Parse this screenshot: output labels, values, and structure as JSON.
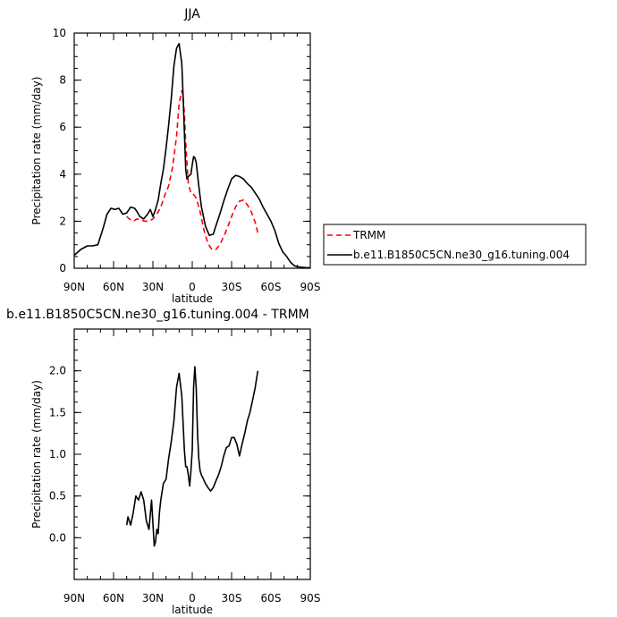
{
  "chart_data": [
    {
      "type": "line",
      "title": "JJA",
      "xlabel": "latitude",
      "ylabel": "Precipitation rate (mm/day)",
      "xlim": [
        90,
        -90
      ],
      "ylim": [
        0,
        10
      ],
      "xticks": [
        90,
        60,
        30,
        0,
        -30,
        -60,
        -90
      ],
      "xtick_labels": [
        "90N",
        "60N",
        "30N",
        "0",
        "30S",
        "60S",
        "90S"
      ],
      "yticks": [
        0,
        2,
        4,
        6,
        8,
        10
      ],
      "ytick_labels": [
        "0",
        "2",
        "4",
        "6",
        "8",
        "10"
      ],
      "legend_position": "right",
      "series": [
        {
          "name": "TRMM",
          "color": "#ff0000",
          "style": "dashed",
          "x": [
            50,
            48,
            45,
            42,
            39,
            36,
            33,
            30,
            27,
            24,
            21,
            18,
            15,
            12,
            10,
            8,
            7,
            6,
            5,
            3,
            1,
            0,
            -3,
            -6,
            -9,
            -12,
            -15,
            -18,
            -21,
            -24,
            -27,
            -30,
            -33,
            -36,
            -39,
            -42,
            -45,
            -48,
            -50
          ],
          "y": [
            2.2,
            2.1,
            2.0,
            2.1,
            2.05,
            2.0,
            2.0,
            2.1,
            2.3,
            2.6,
            3.1,
            3.5,
            4.3,
            5.6,
            7.0,
            7.55,
            7.3,
            6.6,
            5.3,
            3.6,
            3.2,
            3.2,
            3.0,
            2.4,
            1.6,
            1.05,
            0.8,
            0.8,
            1.0,
            1.35,
            1.75,
            2.2,
            2.6,
            2.85,
            2.9,
            2.7,
            2.4,
            1.95,
            1.5
          ]
        },
        {
          "name": "b.e11.B1850C5CN.ne30_g16.tuning.004",
          "color": "#000000",
          "style": "solid",
          "x": [
            90,
            85,
            80,
            76,
            72,
            68,
            65,
            62,
            59,
            56,
            53,
            50,
            47,
            44,
            42,
            40,
            37,
            34,
            32,
            30,
            28,
            26,
            24,
            22,
            20,
            18,
            16,
            14,
            12,
            10,
            8,
            7,
            6,
            5,
            4,
            3,
            1,
            0,
            -1,
            -2,
            -3,
            -5,
            -7,
            -10,
            -13,
            -16,
            -18,
            -21,
            -24,
            -27,
            -30,
            -33,
            -36,
            -39,
            -42,
            -45,
            -48,
            -51,
            -54,
            -57,
            -60,
            -63,
            -66,
            -69,
            -72,
            -75,
            -78,
            -82,
            -86,
            -90
          ],
          "y": [
            0.55,
            0.8,
            0.95,
            0.95,
            1.0,
            1.7,
            2.3,
            2.55,
            2.5,
            2.55,
            2.3,
            2.35,
            2.6,
            2.55,
            2.4,
            2.2,
            2.1,
            2.3,
            2.5,
            2.2,
            2.5,
            2.9,
            3.6,
            4.2,
            5.1,
            6.1,
            7.2,
            8.6,
            9.35,
            9.55,
            8.7,
            7.4,
            5.8,
            4.2,
            3.8,
            3.9,
            4.0,
            4.4,
            4.75,
            4.7,
            4.5,
            3.5,
            2.6,
            1.8,
            1.4,
            1.45,
            1.8,
            2.3,
            2.85,
            3.35,
            3.8,
            3.95,
            3.9,
            3.8,
            3.6,
            3.45,
            3.2,
            2.95,
            2.6,
            2.3,
            2.0,
            1.6,
            1.05,
            0.7,
            0.5,
            0.25,
            0.1,
            0.05,
            0.03,
            0.02
          ]
        }
      ]
    },
    {
      "type": "line",
      "title": "b.e11.B1850C5CN.ne30_g16.tuning.004 - TRMM",
      "xlabel": "latitude",
      "ylabel": "Precipitation rate (mm/day)",
      "xlim": [
        90,
        -90
      ],
      "ylim": [
        -0.5,
        2.5
      ],
      "xticks": [
        90,
        60,
        30,
        0,
        -30,
        -60,
        -90
      ],
      "xtick_labels": [
        "90N",
        "60N",
        "30N",
        "0",
        "30S",
        "60S",
        "90S"
      ],
      "yticks": [
        0.0,
        0.5,
        1.0,
        1.5,
        2.0
      ],
      "ytick_labels": [
        "0.0",
        "0.5",
        "1.0",
        "1.5",
        "2.0"
      ],
      "series": [
        {
          "color": "#000000",
          "style": "solid",
          "x": [
            50,
            49,
            47,
            45,
            43,
            41,
            39,
            37,
            35,
            33,
            31,
            29,
            28,
            27,
            26,
            25,
            24,
            22,
            20,
            18,
            16,
            14,
            12,
            10,
            8,
            6,
            5,
            4,
            3,
            2,
            1,
            0,
            -1,
            -2,
            -3,
            -4,
            -5,
            -6,
            -7,
            -8,
            -10,
            -12,
            -14,
            -16,
            -18,
            -20,
            -22,
            -24,
            -26,
            -28,
            -30,
            -32,
            -34,
            -36,
            -38,
            -40,
            -42,
            -44,
            -46,
            -48,
            -50
          ],
          "y": [
            0.15,
            0.25,
            0.15,
            0.3,
            0.5,
            0.45,
            0.55,
            0.45,
            0.2,
            0.1,
            0.45,
            -0.1,
            -0.05,
            0.1,
            0.05,
            0.3,
            0.45,
            0.65,
            0.7,
            0.95,
            1.15,
            1.4,
            1.8,
            1.97,
            1.7,
            1.05,
            0.85,
            0.85,
            0.75,
            0.62,
            0.8,
            1.05,
            1.8,
            2.05,
            1.8,
            1.25,
            0.95,
            0.8,
            0.75,
            0.72,
            0.65,
            0.6,
            0.56,
            0.6,
            0.68,
            0.75,
            0.85,
            0.98,
            1.08,
            1.1,
            1.2,
            1.2,
            1.12,
            0.98,
            1.12,
            1.25,
            1.4,
            1.5,
            1.65,
            1.8,
            2.0
          ]
        }
      ]
    }
  ]
}
